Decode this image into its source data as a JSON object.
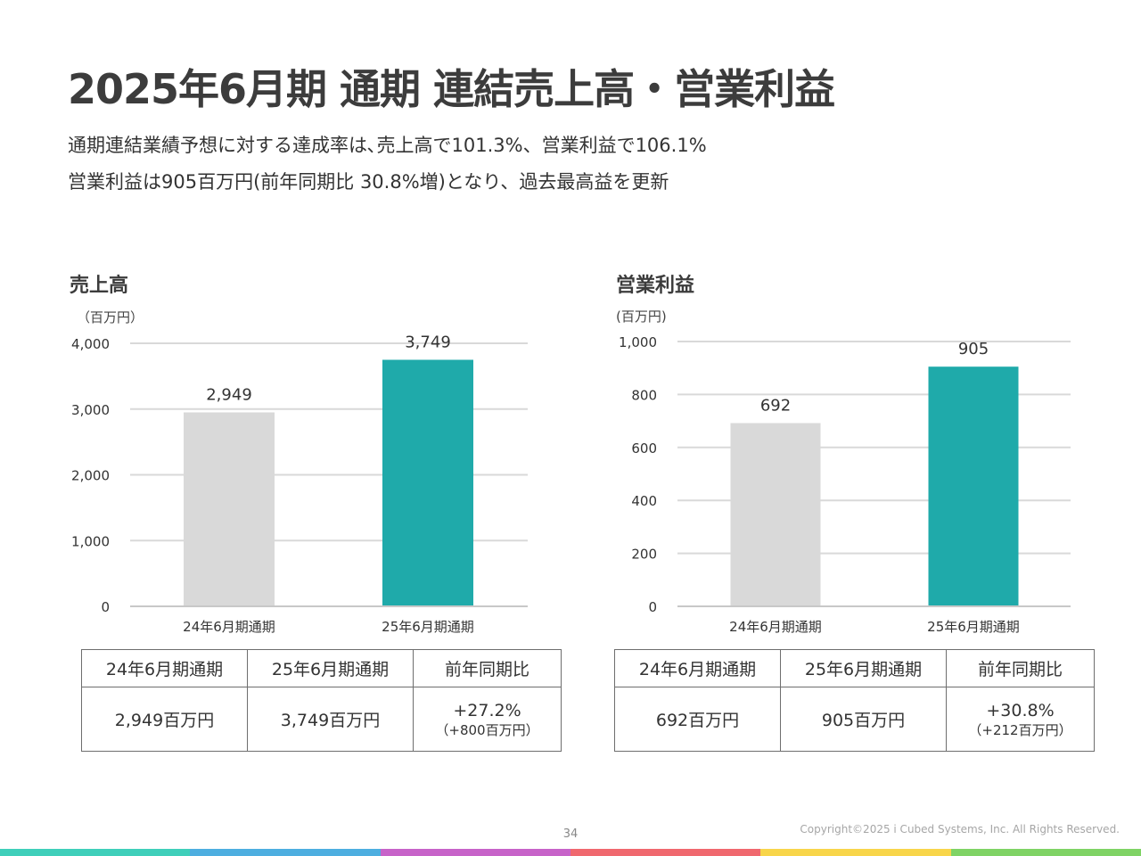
{
  "header": {
    "title": "2025年6月期 通期 連結売上高・営業利益",
    "subtitle_line1": "通期連結業績予想に対する達成率は､売上高で101.3%、営業利益で106.1%",
    "subtitle_line2": "営業利益は905百万円(前年同期比 30.8%増)となり、過去最高益を更新"
  },
  "chart_data": [
    {
      "type": "bar",
      "title": "売上高",
      "unit_label": "（百万円）",
      "categories": [
        "24年6月期通期",
        "25年6月期通期"
      ],
      "values": [
        2949,
        3749
      ],
      "value_labels": [
        "2,949",
        "3,749"
      ],
      "ylim": [
        0,
        4000
      ],
      "yticks": [
        0,
        1000,
        2000,
        3000,
        4000
      ],
      "ytick_labels": [
        "0",
        "1,000",
        "2,000",
        "3,000",
        "4,000"
      ],
      "grid": true,
      "colors": [
        "#d9d9d9",
        "#1faaaa"
      ]
    },
    {
      "type": "bar",
      "title": "営業利益",
      "unit_label": "(百万円)",
      "categories": [
        "24年6月期通期",
        "25年6月期通期"
      ],
      "values": [
        692,
        905
      ],
      "value_labels": [
        "692",
        "905"
      ],
      "ylim": [
        0,
        1000
      ],
      "yticks": [
        0,
        200,
        400,
        600,
        800,
        1000
      ],
      "ytick_labels": [
        "0",
        "200",
        "400",
        "600",
        "800",
        "1,000"
      ],
      "grid": true,
      "colors": [
        "#d9d9d9",
        "#1faaaa"
      ]
    }
  ],
  "tables": {
    "sales": {
      "headers": [
        "24年6月期通期",
        "25年6月期通期",
        "前年同期比"
      ],
      "prev": "2,949百万円",
      "curr": "3,749百万円",
      "pct": "+27.2%",
      "diff": "（+800百万円）"
    },
    "profit": {
      "headers": [
        "24年6月期通期",
        "25年6月期通期",
        "前年同期比"
      ],
      "prev": "692百万円",
      "curr": "905百万円",
      "pct": "+30.8%",
      "diff": "（+212百万円）"
    }
  },
  "footer": {
    "page_number": "34",
    "copyright": "Copyright©2025 i Cubed Systems, Inc. All Rights Reserved.",
    "bar_colors": [
      "#3fcfba",
      "#4daee0",
      "#c763c9",
      "#f0686e",
      "#f8d54a",
      "#7fd365"
    ]
  }
}
